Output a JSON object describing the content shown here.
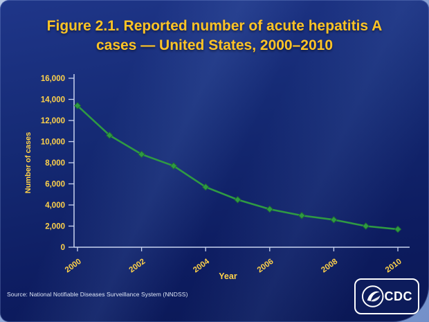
{
  "slide": {
    "title_lines": [
      "Figure 2.1. Reported number of acute hepatitis A",
      "cases — United States, 2000–2010"
    ],
    "source": "Source: National Notifiable Diseases Surveillance System (NNDSS)",
    "logo_text": "CDC"
  },
  "colors": {
    "title": "#ffc425",
    "axis_text": "#ffd24a",
    "axis_line": "#c9d4f0",
    "line": "#2f9a43",
    "marker_stroke": "#1e6f31",
    "slide_background": "#13236e",
    "source_text": "#dfe7f7"
  },
  "chart_data": {
    "type": "line",
    "title": "Figure 2.1. Reported number of acute hepatitis A cases — United States, 2000–2010",
    "xlabel": "Year",
    "ylabel": "Number of cases",
    "x": [
      2000,
      2001,
      2002,
      2003,
      2004,
      2005,
      2006,
      2007,
      2008,
      2009,
      2010
    ],
    "series": [
      {
        "name": "Reported acute hepatitis A cases",
        "values": [
          13400,
          10600,
          8800,
          7700,
          5700,
          4500,
          3600,
          3000,
          2600,
          2000,
          1700
        ]
      }
    ],
    "ylim": [
      0,
      16000
    ],
    "ytick_step": 2000,
    "xtick_labels": [
      "2000",
      "2002",
      "2004",
      "2006",
      "2008",
      "2010"
    ],
    "x_tick_rotation": -36,
    "grid": false,
    "legend": "none",
    "marker": "diamond"
  }
}
